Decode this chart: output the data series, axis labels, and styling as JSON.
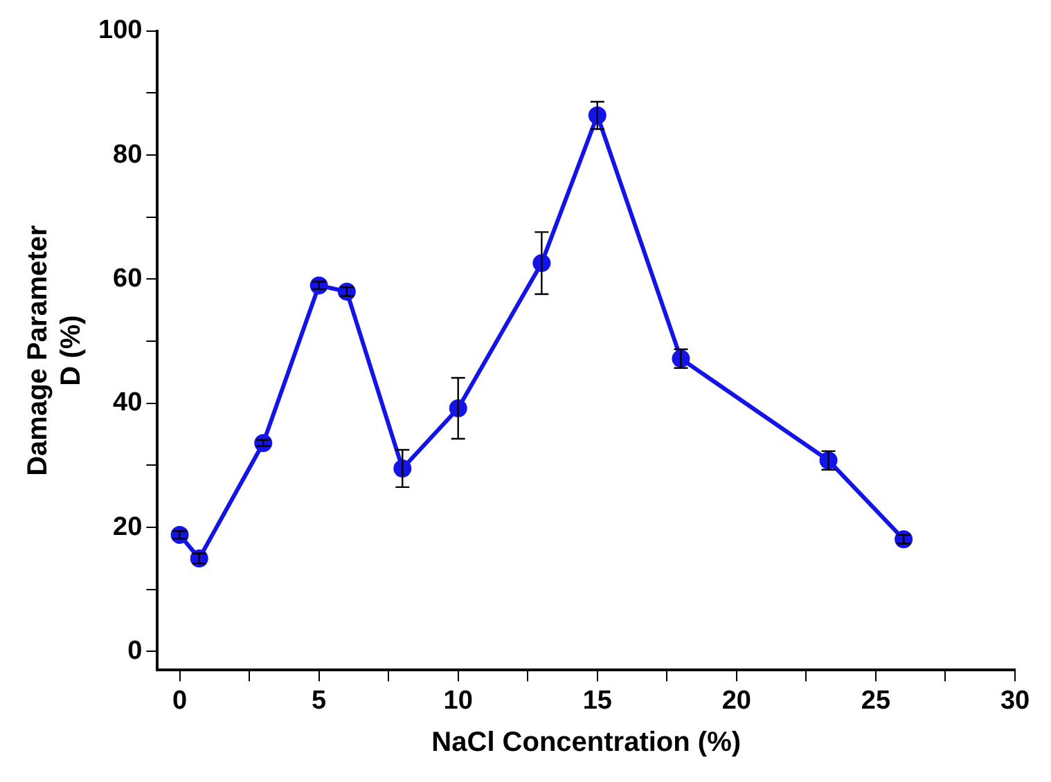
{
  "chart_data": {
    "type": "line",
    "xlabel": "NaCl Concentration (%)",
    "ylabel": "Damage Parameter\nD (%)",
    "x": [
      0,
      0.7,
      3,
      5,
      6,
      8,
      10,
      13,
      15,
      18,
      23.3,
      26
    ],
    "series": [
      {
        "color": "#1414e6",
        "values": [
          18.8,
          15,
          33.6,
          59,
          58,
          29.5,
          39.2,
          62.6,
          86.4,
          47.2,
          30.8,
          18.1
        ],
        "errors": [
          0.6,
          0.8,
          0.5,
          0.6,
          0.7,
          3,
          4.9,
          5,
          2.2,
          1.5,
          1.5,
          0.7
        ]
      }
    ],
    "xlim": [
      -0.8,
      30
    ],
    "ylim": [
      -3,
      100
    ],
    "xticks": [
      0,
      {
        "value": 2.5,
        "label": null
      },
      5,
      {
        "value": 7.5,
        "label": null
      },
      10,
      {
        "value": 12.5,
        "label": null
      },
      15,
      {
        "value": 17.5,
        "label": null
      },
      20,
      {
        "value": 22.5,
        "label": null
      },
      25,
      {
        "value": 27.5,
        "label": null
      },
      30
    ],
    "yticks": [
      0,
      {
        "value": 10,
        "label": null
      },
      20,
      {
        "value": 30,
        "label": null
      },
      40,
      {
        "value": 50,
        "label": null
      },
      60,
      {
        "value": 70,
        "label": null
      },
      80,
      {
        "value": 90,
        "label": null
      },
      100
    ],
    "grid": false,
    "legend": false,
    "marker": "circle",
    "line_style": "solid"
  }
}
